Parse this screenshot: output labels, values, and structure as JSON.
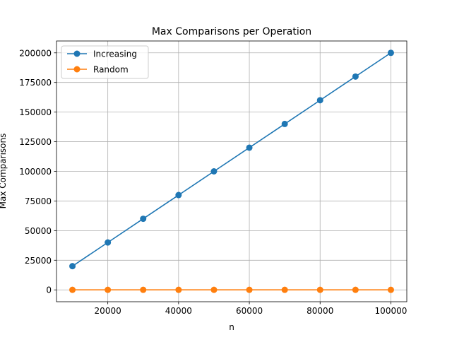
{
  "chart_data": {
    "type": "line",
    "title": "Max Comparisons per Operation",
    "xlabel": "n",
    "ylabel": "Max Comparisons",
    "x": [
      10000,
      20000,
      30000,
      40000,
      50000,
      60000,
      70000,
      80000,
      90000,
      100000
    ],
    "series": [
      {
        "name": "Increasing",
        "color": "#1f77b4",
        "marker": "circle",
        "values": [
          20000,
          40000,
          60000,
          80000,
          100000,
          120000,
          140000,
          160000,
          180000,
          200000
        ]
      },
      {
        "name": "Random",
        "color": "#ff7f0e",
        "marker": "circle",
        "values": [
          40,
          38,
          42,
          41,
          45,
          40,
          43,
          42,
          41,
          44
        ]
      }
    ],
    "xlim": [
      5500,
      104500
    ],
    "ylim": [
      -10000,
      210000
    ],
    "xticks": [
      20000,
      40000,
      60000,
      80000,
      100000
    ],
    "yticks": [
      0,
      25000,
      50000,
      75000,
      100000,
      125000,
      150000,
      175000,
      200000
    ],
    "grid": true,
    "legend_position": "top-left"
  }
}
